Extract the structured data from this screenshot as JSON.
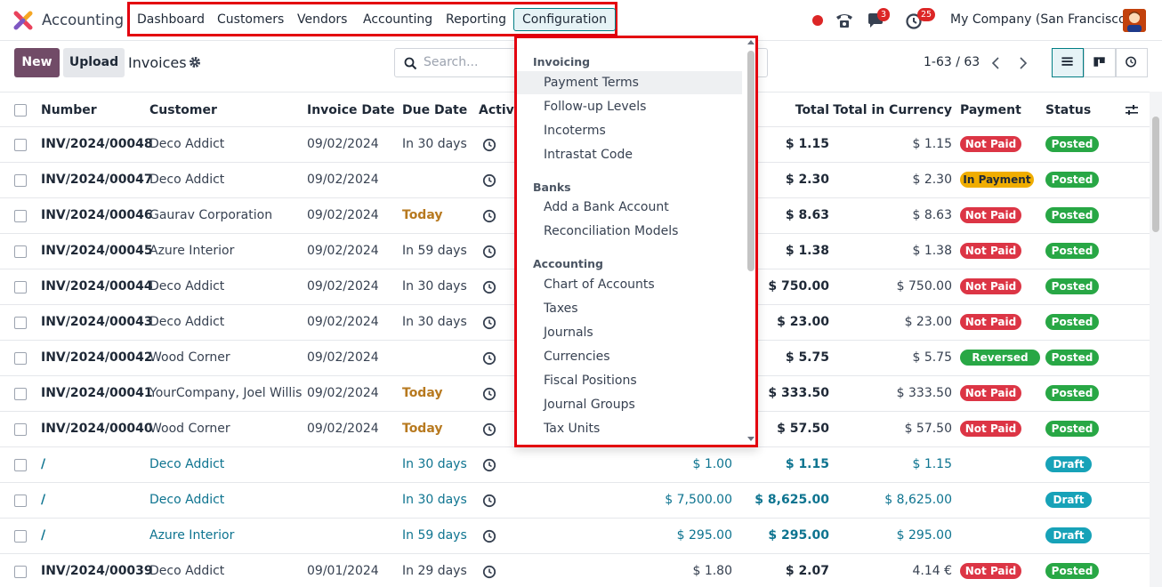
{
  "navbar": {
    "app_name": "Accounting",
    "menu": [
      "Dashboard",
      "Customers",
      "Vendors",
      "Accounting",
      "Reporting",
      "Configuration"
    ],
    "chat_count": "3",
    "activity_count": "25",
    "company": "My Company (San Francisco)"
  },
  "control": {
    "new_label": "New",
    "upload_label": "Upload",
    "breadcrumb": "Invoices",
    "search_placeholder": "Search...",
    "pager": "1-63 / 63"
  },
  "table": {
    "headers": {
      "number": "Number",
      "customer": "Customer",
      "invoice_date": "Invoice Date",
      "due_date": "Due Date",
      "activities": "Activi",
      "total": "Total",
      "total_currency": "Total in Currency",
      "payment": "Payment",
      "status": "Status"
    },
    "rows": [
      {
        "number": "INV/2024/00048",
        "customer": "Deco Addict",
        "date": "09/02/2024",
        "due": "In 30 days",
        "untaxed": "",
        "total": "$ 1.15",
        "total_cur": "$ 1.15",
        "payment": "Not Paid",
        "status": "Posted"
      },
      {
        "number": "INV/2024/00047",
        "customer": "Deco Addict",
        "date": "09/02/2024",
        "due": "",
        "untaxed": "",
        "total": "$ 2.30",
        "total_cur": "$ 2.30",
        "payment": "In Payment",
        "status": "Posted"
      },
      {
        "number": "INV/2024/00046",
        "customer": "Gaurav Corporation",
        "date": "09/02/2024",
        "due": "Today",
        "untaxed": "",
        "total": "$ 8.63",
        "total_cur": "$ 8.63",
        "payment": "Not Paid",
        "status": "Posted"
      },
      {
        "number": "INV/2024/00045",
        "customer": "Azure Interior",
        "date": "09/02/2024",
        "due": "In 59 days",
        "untaxed": "",
        "total": "$ 1.38",
        "total_cur": "$ 1.38",
        "payment": "Not Paid",
        "status": "Posted"
      },
      {
        "number": "INV/2024/00044",
        "customer": "Deco Addict",
        "date": "09/02/2024",
        "due": "In 30 days",
        "untaxed": "",
        "total": "$ 750.00",
        "total_cur": "$ 750.00",
        "payment": "Not Paid",
        "status": "Posted"
      },
      {
        "number": "INV/2024/00043",
        "customer": "Deco Addict",
        "date": "09/02/2024",
        "due": "In 30 days",
        "untaxed": "",
        "total": "$ 23.00",
        "total_cur": "$ 23.00",
        "payment": "Not Paid",
        "status": "Posted"
      },
      {
        "number": "INV/2024/00042",
        "customer": "Wood Corner",
        "date": "09/02/2024",
        "due": "",
        "untaxed": "",
        "total": "$ 5.75",
        "total_cur": "$ 5.75",
        "payment": "Reversed",
        "status": "Posted"
      },
      {
        "number": "INV/2024/00041",
        "customer": "YourCompany, Joel Willis",
        "date": "09/02/2024",
        "due": "Today",
        "untaxed": "",
        "total": "$ 333.50",
        "total_cur": "$ 333.50",
        "payment": "Not Paid",
        "status": "Posted"
      },
      {
        "number": "INV/2024/00040",
        "customer": "Wood Corner",
        "date": "09/02/2024",
        "due": "Today",
        "untaxed": "",
        "total": "$ 57.50",
        "total_cur": "$ 57.50",
        "payment": "Not Paid",
        "status": "Posted"
      },
      {
        "number": "/",
        "customer": "Deco Addict",
        "date": "",
        "due": "In 30 days",
        "untaxed": "$ 1.00",
        "total": "$ 1.15",
        "total_cur": "$ 1.15",
        "payment": "",
        "status": "Draft"
      },
      {
        "number": "/",
        "customer": "Deco Addict",
        "date": "",
        "due": "In 30 days",
        "untaxed": "$ 7,500.00",
        "total": "$ 8,625.00",
        "total_cur": "$ 8,625.00",
        "payment": "",
        "status": "Draft"
      },
      {
        "number": "/",
        "customer": "Azure Interior",
        "date": "",
        "due": "In 59 days",
        "untaxed": "$ 295.00",
        "total": "$ 295.00",
        "total_cur": "$ 295.00",
        "payment": "",
        "status": "Draft"
      },
      {
        "number": "INV/2024/00039",
        "customer": "Deco Addict",
        "date": "09/01/2024",
        "due": "In 29 days",
        "untaxed": "$ 1.80",
        "total": "$ 2.07",
        "total_cur": "4.14 €",
        "payment": "Not Paid",
        "status": "Posted"
      }
    ]
  },
  "dropdown": {
    "sections": [
      {
        "title": "Invoicing",
        "items": [
          "Payment Terms",
          "Follow-up Levels",
          "Incoterms",
          "Intrastat Code"
        ]
      },
      {
        "title": "Banks",
        "items": [
          "Add a Bank Account",
          "Reconciliation Models"
        ]
      },
      {
        "title": "Accounting",
        "items": [
          "Chart of Accounts",
          "Taxes",
          "Journals",
          "Currencies",
          "Fiscal Positions",
          "Journal Groups",
          "Tax Units"
        ]
      }
    ]
  },
  "colors": {
    "brand": "#714b67",
    "accent": "#017e84",
    "highlight_box": "#e3000f"
  }
}
